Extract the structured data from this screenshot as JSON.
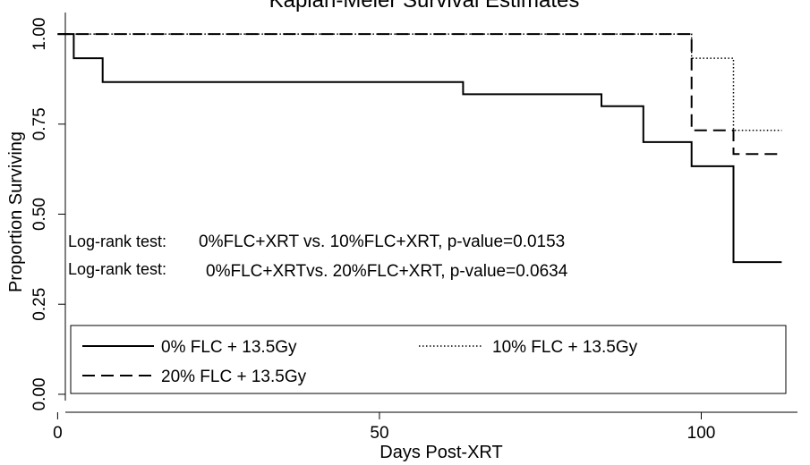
{
  "chart_data": {
    "type": "line",
    "title": "Kaplan-Meier Survival Estimates",
    "xlabel": "Days Post-XRT",
    "ylabel": "Proportion Surviving",
    "xlim": [
      -2,
      113
    ],
    "ylim": [
      -0.03,
      1.035
    ],
    "x_ticks": [
      0,
      50,
      100
    ],
    "x_tick_labels": [
      "0",
      "50",
      "100"
    ],
    "y_ticks": [
      0,
      0.25,
      0.5,
      0.75,
      1.0
    ],
    "y_tick_labels": [
      "0.00",
      "0.25",
      "0.50",
      "0.75",
      "1.00"
    ],
    "grid": false,
    "step": true,
    "series": [
      {
        "name": "0% FLC + 13.5Gy",
        "dash": "solid",
        "x": [
          0,
          2.5,
          7,
          63,
          84.5,
          91,
          98.5,
          105,
          112.5
        ],
        "y": [
          1.0,
          0.933,
          0.867,
          0.833,
          0.8,
          0.7,
          0.633,
          0.367,
          0.367
        ]
      },
      {
        "name": "10% FLC + 13.5Gy",
        "dash": "dotted",
        "x": [
          0,
          98.5,
          105,
          112.5
        ],
        "y": [
          1.0,
          0.933,
          0.733,
          0.733
        ]
      },
      {
        "name": "20% FLC + 13.5Gy",
        "dash": "dashed",
        "x": [
          0,
          98.5,
          105,
          112.5
        ],
        "y": [
          1.0,
          0.733,
          0.667,
          0.667
        ]
      }
    ],
    "annotations": [
      {
        "label": "Log-rank test:",
        "text": "0%FLC+XRT vs. 10%FLC+XRT, p-value=0.0153"
      },
      {
        "label": "Log-rank test:",
        "text": "0%FLC+XRTvs. 20%FLC+XRT, p-value=0.0634"
      }
    ],
    "legend_placement": "bottom-inside"
  }
}
